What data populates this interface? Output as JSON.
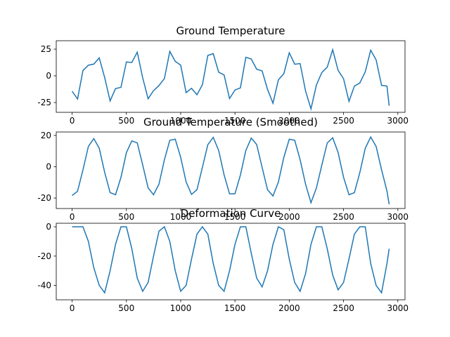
{
  "chart_data": [
    {
      "type": "line",
      "title": "Ground Temperature",
      "color": "#1f77b4",
      "x": [
        0,
        50,
        100,
        150,
        200,
        250,
        300,
        350,
        400,
        450,
        500,
        550,
        600,
        650,
        700,
        750,
        800,
        850,
        900,
        950,
        1000,
        1050,
        1100,
        1150,
        1200,
        1250,
        1300,
        1350,
        1400,
        1450,
        1500,
        1550,
        1600,
        1650,
        1700,
        1750,
        1800,
        1850,
        1900,
        1950,
        2000,
        2050,
        2100,
        2150,
        2200,
        2250,
        2300,
        2350,
        2400,
        2450,
        2500,
        2550,
        2600,
        2650,
        2700,
        2750,
        2800,
        2850,
        2900,
        2920
      ],
      "values": [
        -14.4,
        -21.7,
        5.0,
        10.0,
        11.0,
        16.8,
        -1.6,
        -23.5,
        -11.9,
        -10.8,
        13.0,
        12.5,
        22.2,
        -1.8,
        -21.5,
        -13.9,
        -9.1,
        -2.6,
        22.9,
        13.6,
        10.0,
        -15.7,
        -11.7,
        -17.7,
        -8.4,
        19.1,
        20.8,
        3.4,
        0.8,
        -21.3,
        -13.3,
        -11.3,
        17.4,
        15.8,
        6.2,
        4.6,
        -12.7,
        -25.7,
        -3.7,
        2.0,
        21.6,
        10.9,
        11.5,
        -14.1,
        -31.0,
        -8.6,
        3.1,
        8.2,
        24.5,
        5.1,
        -2.7,
        -23.9,
        -9.6,
        -6.7,
        3.8,
        24.0,
        15.0,
        -8.9,
        -9.6,
        -28.0
      ],
      "xlim": [
        -146,
        3066
      ],
      "ylim": [
        -34.2,
        32.9
      ],
      "xticks": [
        0,
        500,
        1000,
        1500,
        2000,
        2500,
        3000
      ],
      "yticks": [
        -25,
        0,
        25
      ]
    },
    {
      "type": "line",
      "title": "Ground Temperature (Smoothed)",
      "color": "#1f77b4",
      "x": [
        0,
        50,
        100,
        150,
        200,
        250,
        300,
        350,
        400,
        450,
        500,
        550,
        600,
        650,
        700,
        750,
        800,
        850,
        900,
        950,
        1000,
        1050,
        1100,
        1150,
        1200,
        1250,
        1300,
        1350,
        1400,
        1450,
        1500,
        1550,
        1600,
        1650,
        1700,
        1750,
        1800,
        1850,
        1900,
        1950,
        2000,
        2050,
        2100,
        2150,
        2200,
        2250,
        2300,
        2350,
        2400,
        2450,
        2500,
        2550,
        2600,
        2650,
        2700,
        2750,
        2800,
        2850,
        2900,
        2920
      ],
      "values": [
        -18.4,
        -15.7,
        -2.0,
        13.0,
        18.0,
        11.8,
        -3.6,
        -16.5,
        -17.9,
        -6.8,
        9.0,
        16.5,
        15.2,
        1.2,
        -13.5,
        -17.9,
        -11.1,
        4.4,
        16.9,
        17.6,
        6.0,
        -9.7,
        -17.7,
        -14.7,
        -0.4,
        14.1,
        18.8,
        10.4,
        -5.2,
        -17.3,
        -17.3,
        -5.3,
        10.4,
        18.3,
        14.2,
        -0.4,
        -14.7,
        -18.7,
        -9.7,
        6.0,
        17.6,
        16.9,
        4.5,
        -11.1,
        -23.0,
        -13.6,
        1.1,
        15.2,
        18.5,
        9.1,
        -6.7,
        -17.9,
        -16.6,
        -3.7,
        11.8,
        19.0,
        13.0,
        -1.9,
        -15.6,
        -24.0
      ],
      "xlim": [
        -146,
        3066
      ],
      "ylim": [
        -26.7,
        22.2
      ],
      "xticks": [
        0,
        500,
        1000,
        1500,
        2000,
        2500,
        3000
      ],
      "yticks": [
        -20,
        0,
        20
      ]
    },
    {
      "type": "line",
      "title": "Deformation Curve",
      "color": "#1f77b4",
      "x": [
        0,
        50,
        100,
        150,
        200,
        250,
        300,
        350,
        400,
        450,
        500,
        550,
        600,
        650,
        700,
        750,
        800,
        850,
        900,
        950,
        1000,
        1050,
        1100,
        1150,
        1200,
        1250,
        1300,
        1350,
        1400,
        1450,
        1500,
        1550,
        1600,
        1650,
        1700,
        1750,
        1800,
        1850,
        1900,
        1950,
        2000,
        2050,
        2100,
        2150,
        2200,
        2250,
        2300,
        2350,
        2400,
        2450,
        2500,
        2550,
        2600,
        2650,
        2700,
        2750,
        2800,
        2850,
        2900,
        2920
      ],
      "values": [
        0,
        0,
        0,
        -10,
        -28,
        -40,
        -45,
        -30,
        -12,
        0,
        0,
        -15,
        -35,
        -44,
        -38,
        -20,
        -3,
        0,
        -10,
        -30,
        -44,
        -40,
        -22,
        -5,
        0,
        -5,
        -25,
        -40,
        -44,
        -30,
        -12,
        0,
        0,
        -18,
        -35,
        -41,
        -30,
        -12,
        0,
        -2,
        -22,
        -38,
        -44,
        -32,
        -12,
        0,
        0,
        -15,
        -33,
        -43,
        -38,
        -22,
        -5,
        0,
        0,
        -25,
        -40,
        -45,
        -25,
        -15
      ],
      "xlim": [
        -146,
        3066
      ],
      "ylim": [
        -49.8,
        2.4
      ],
      "xticks": [
        0,
        500,
        1000,
        1500,
        2000,
        2500,
        3000
      ],
      "yticks": [
        -40,
        -20,
        0
      ]
    }
  ]
}
